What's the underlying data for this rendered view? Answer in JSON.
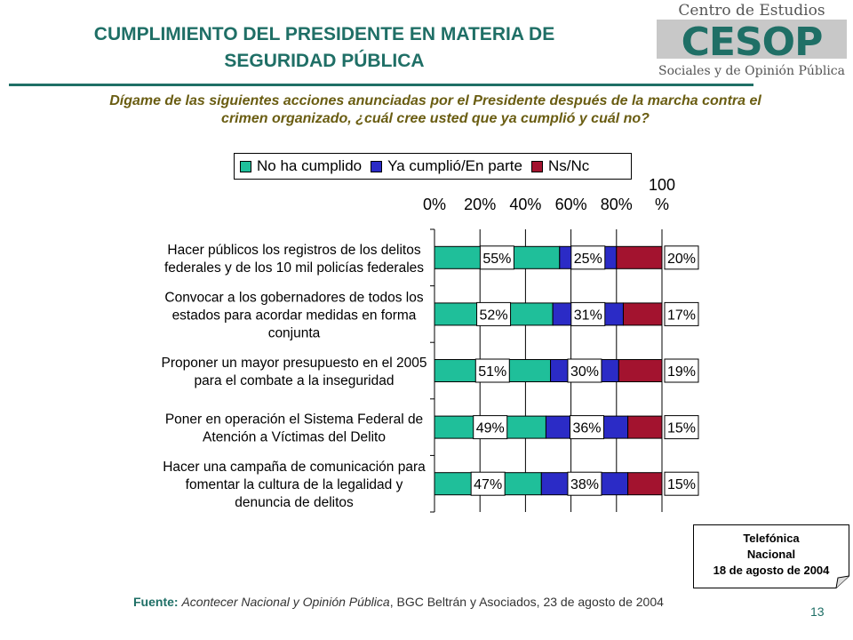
{
  "title_line1": "CUMPLIMIENTO DEL PRESIDENTE EN MATERIA DE",
  "title_line2": "SEGURIDAD PÚBLICA",
  "logo": {
    "line1": "Centro de Estudios",
    "mark": "CESOP",
    "line3": "Sociales y de Opinión Pública"
  },
  "question_line1": "Dígame de las siguientes acciones anunciadas por el Presidente después de la marcha contra el",
  "question_line2": "crimen organizado, ¿cuál cree usted que ya cumplió y cuál no?",
  "source": {
    "label": "Fuente:",
    "italic": "Acontecer Nacional y Opinión Pública",
    "rest": ", BGC Beltrán y Asociados, 23 de agosto de 2004"
  },
  "page_number": "13",
  "note": {
    "line1": "Telefónica",
    "line2": "Nacional",
    "line3": "18 de agosto de 2004"
  },
  "colors": {
    "no_ha_cumplido": "#1fbf9a",
    "ya_cumplio": "#2b2bc6",
    "ns_nc": "#a3132f",
    "title": "#1f6f66",
    "question": "#6a5d12"
  },
  "chart_data": {
    "type": "bar",
    "orientation": "horizontal",
    "stacked": "percent",
    "categories": [
      [
        "Hacer públicos los registros de los delitos",
        "federales y de los 10 mil policías federales"
      ],
      [
        "Convocar a los gobernadores de todos los",
        "estados para acordar medidas en forma",
        "conjunta"
      ],
      [
        "Proponer un mayor presupuesto en el 2005",
        "para el combate a la inseguridad"
      ],
      [
        "Poner en operación el Sistema Federal de",
        "Atención a Víctimas del Delito"
      ],
      [
        "Hacer una campaña de comunicación para",
        "fomentar la cultura de la legalidad y",
        "denuncia de delitos"
      ]
    ],
    "series": [
      {
        "name": "No ha cumplido",
        "values": [
          55,
          52,
          51,
          49,
          47
        ],
        "labels": [
          "55%",
          "52%",
          "51%",
          "49%",
          "47%"
        ]
      },
      {
        "name": "Ya cumplió/En parte",
        "values": [
          25,
          31,
          30,
          36,
          38
        ],
        "labels": [
          "25%",
          "31%",
          "30%",
          "36%",
          "38%"
        ]
      },
      {
        "name": "Ns/Nc",
        "values": [
          20,
          17,
          19,
          15,
          15
        ],
        "labels": [
          "20%",
          "17%",
          "19%",
          "15%",
          "15%"
        ]
      }
    ],
    "x_ticks": [
      "0%",
      "20%",
      "40%",
      "60%",
      "80%"
    ],
    "x_tick_last_line1": "100",
    "x_tick_last_line2": "%",
    "xlim": [
      0,
      100
    ],
    "legend_position": "top",
    "grid": true
  }
}
